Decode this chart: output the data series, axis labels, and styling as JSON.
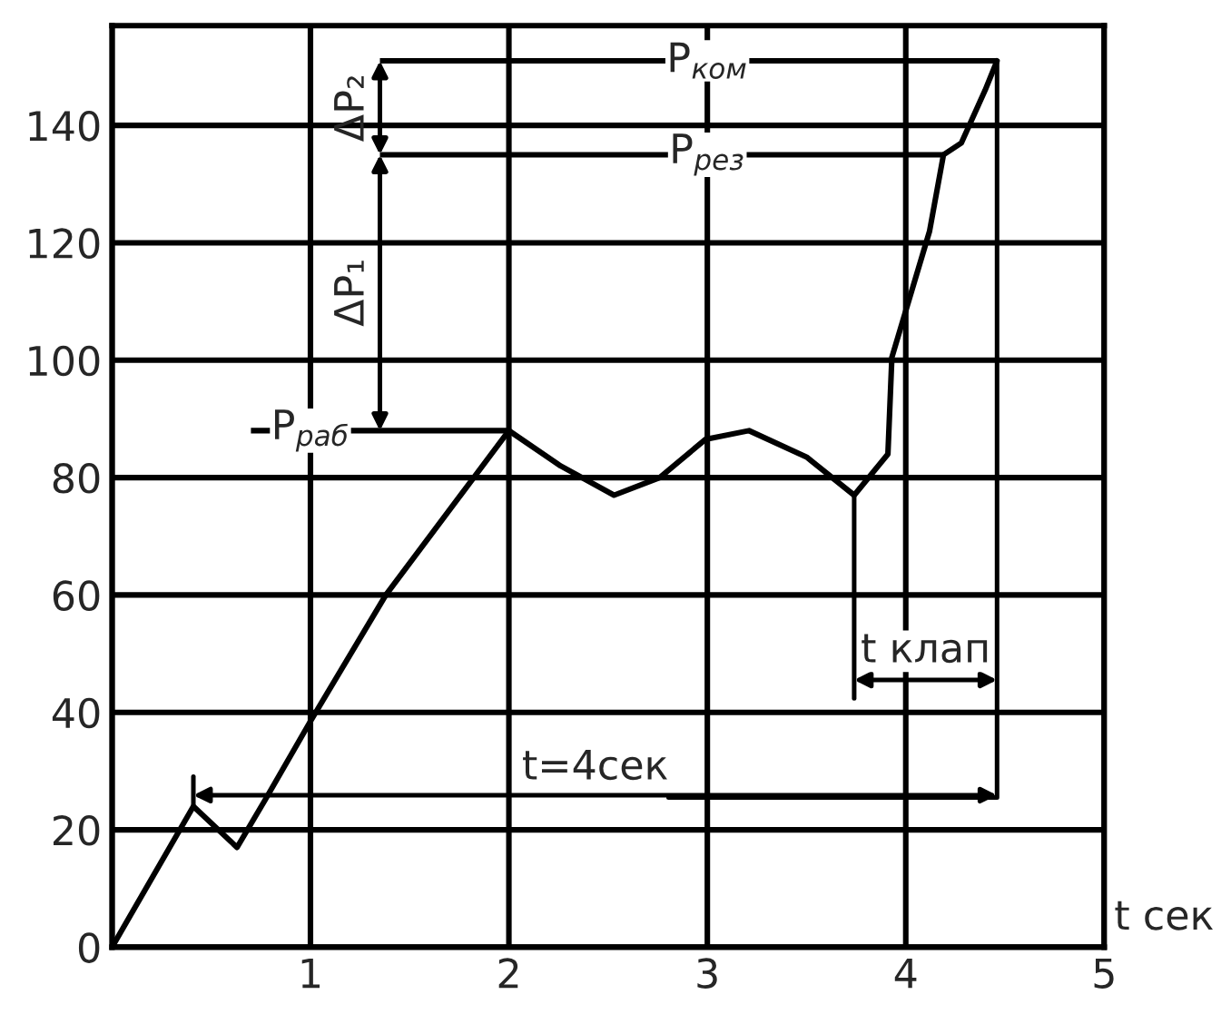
{
  "chart_data": {
    "type": "line",
    "xlabel": "t сек",
    "x": [
      0,
      0.41,
      0.63,
      0.77,
      1.0,
      1.38,
      2.0,
      2.26,
      2.53,
      2.76,
      2.99,
      3.21,
      3.5,
      3.74,
      3.91,
      3.93,
      4.12,
      4.19,
      4.28,
      4.4,
      4.46
    ],
    "series": [
      {
        "color": "#000000",
        "values": [
          0,
          24,
          17,
          25,
          38.5,
          60,
          88,
          82,
          77,
          80,
          86.5,
          88,
          83.5,
          77,
          84,
          100.5,
          122,
          135,
          137,
          146,
          151
        ]
      }
    ],
    "xlim": [
      0,
      5
    ],
    "ylim": [
      0,
      157
    ],
    "xticks": [
      {
        "value": 0,
        "label": null
      },
      1,
      2,
      3,
      4,
      5
    ],
    "yticks": [
      0,
      20,
      40,
      60,
      80,
      100,
      120,
      140
    ],
    "grid": true,
    "marker": "none",
    "line_style": "solid",
    "ref_lines": [
      {
        "axis": "y",
        "value": 88,
        "label": "P$_{раб}$"
      },
      {
        "axis": "y",
        "value": 135,
        "label": "P$_{рез}$"
      },
      {
        "axis": "y",
        "value": 151,
        "label": "P$_{ком}$"
      }
    ],
    "annotations": [
      {
        "text": "ΔP₁",
        "x": 1.35,
        "y": 135
      },
      {
        "text": "ΔP₂",
        "x": 1.35,
        "y": 151
      },
      {
        "text": "t=4сек",
        "x": 4.46,
        "y": 151
      },
      {
        "text": "t клап",
        "x": 3.74,
        "y": 77
      }
    ]
  }
}
